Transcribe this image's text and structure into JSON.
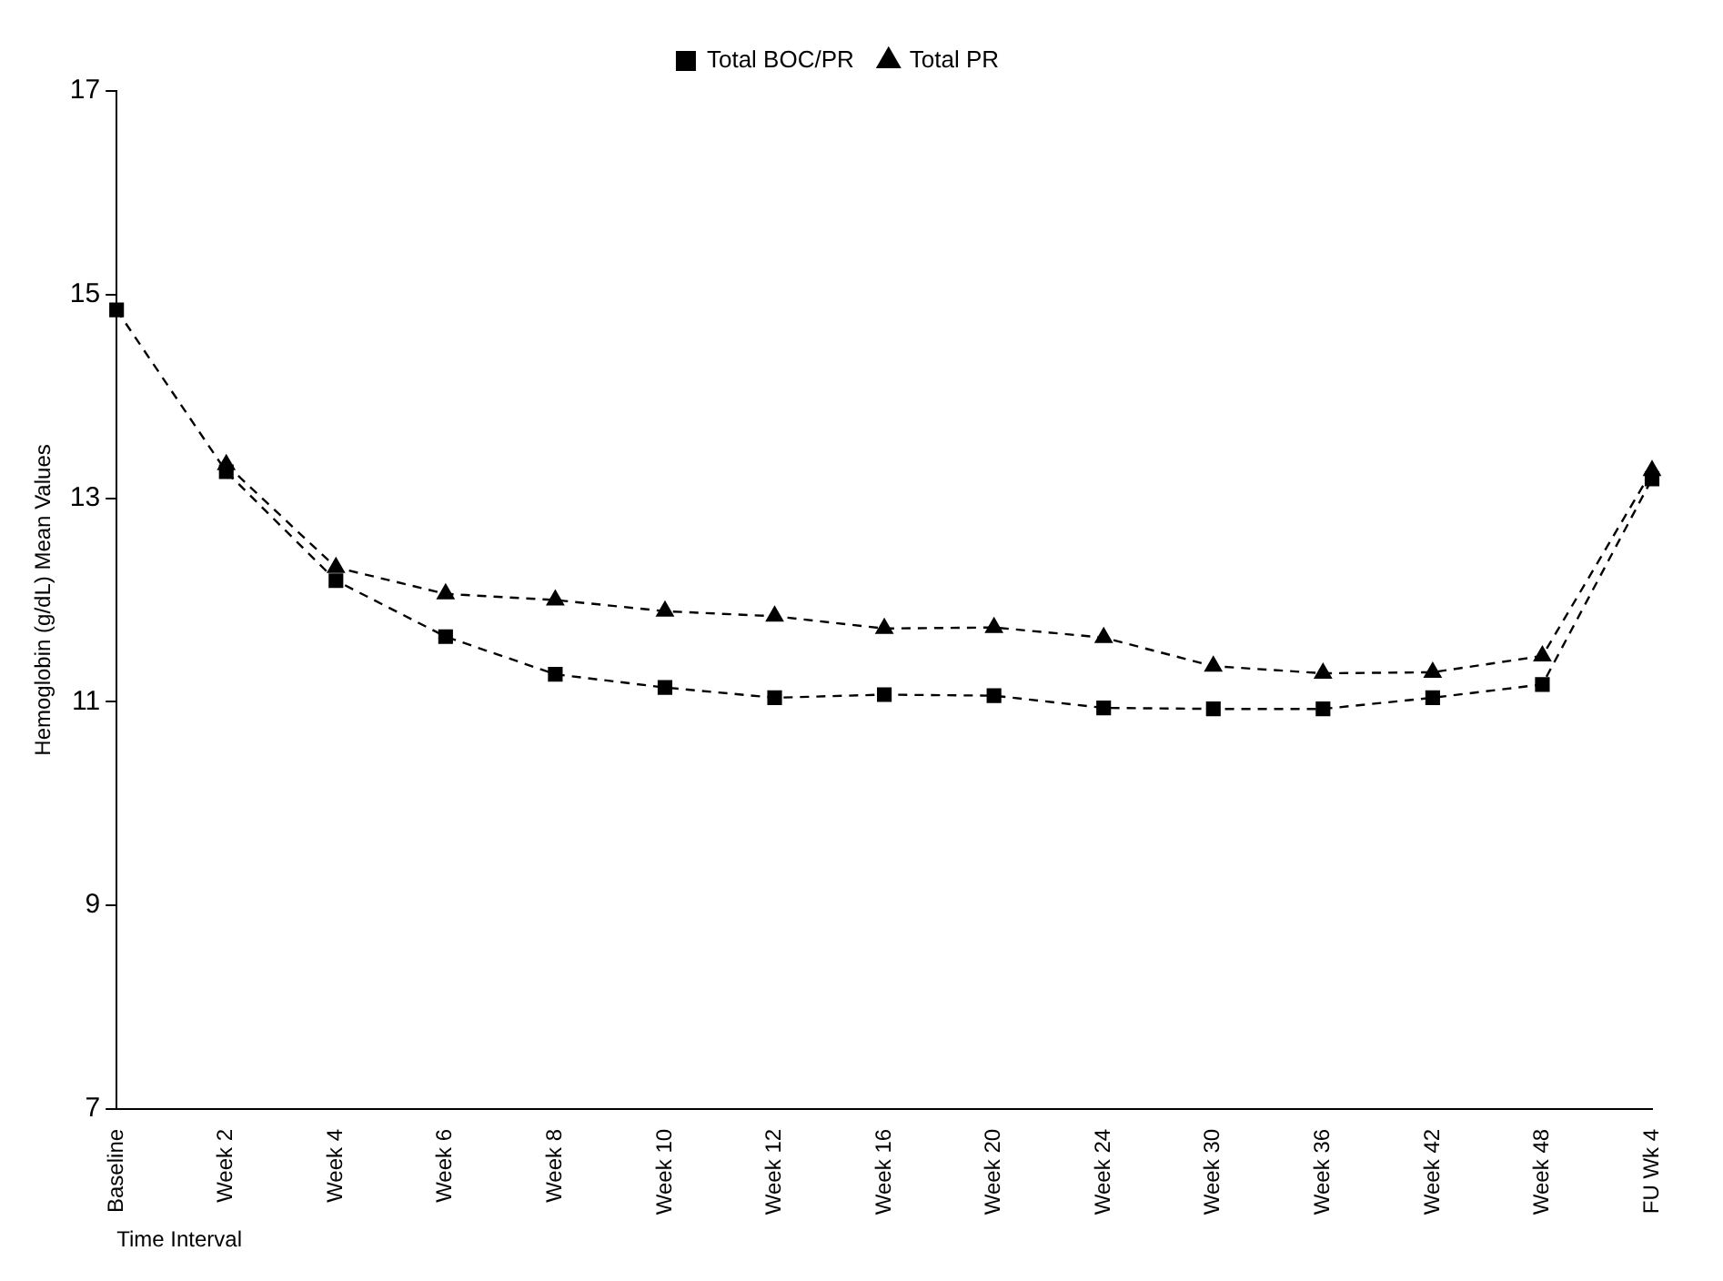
{
  "chart_data": {
    "type": "line",
    "xlabel": "Time Interval",
    "ylabel": "Hemoglobin (g/dL) Mean Values",
    "categories": [
      "Baseline",
      "Week 2",
      "Week 4",
      "Week 6",
      "Week 8",
      "Week 10",
      "Week 12",
      "Week 16",
      "Week 20",
      "Week 24",
      "Week 30",
      "Week 36",
      "Week 42",
      "Week 48",
      "FU Wk 4"
    ],
    "series": [
      {
        "name": "Total BOC/PR",
        "color": "#000000",
        "marker": "square",
        "values": [
          14.85,
          13.26,
          12.19,
          11.64,
          11.27,
          11.14,
          11.04,
          11.07,
          11.06,
          10.94,
          10.93,
          10.93,
          11.04,
          11.17,
          13.19
        ]
      },
      {
        "name": "Total PR",
        "color": "#000000",
        "marker": "triangle",
        "values": [
          null,
          13.33,
          12.32,
          12.06,
          12.0,
          11.89,
          11.84,
          11.72,
          11.73,
          11.63,
          11.35,
          11.28,
          11.29,
          11.45,
          13.27
        ]
      }
    ],
    "ylim": [
      7,
      17
    ],
    "yticks": [
      7,
      9,
      11,
      13,
      15,
      17
    ],
    "grid": false,
    "legend": "top",
    "line_style": "dashed"
  }
}
